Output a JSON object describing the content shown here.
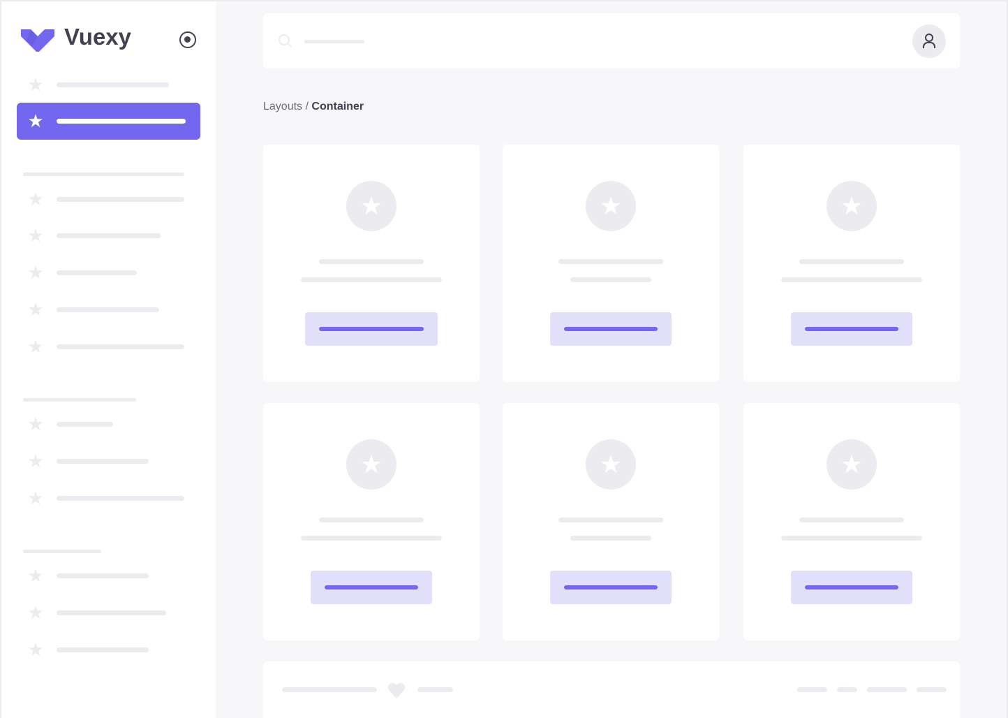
{
  "brand": {
    "name": "Vuexy",
    "color": "#7367f0"
  },
  "icons": {
    "logo": "vuexy-logo",
    "pin": "radio-circle-icon",
    "nav": "star-icon",
    "search": "search-icon",
    "avatar": "user-icon",
    "card": "star-icon",
    "footer": "heart-icon"
  },
  "breadcrumb": {
    "parent": "Layouts",
    "separator": " / ",
    "current": "Container"
  },
  "colors": {
    "accent": "#7367f0",
    "placeholder": "#ebebf0",
    "background": "#f7f7f9"
  }
}
